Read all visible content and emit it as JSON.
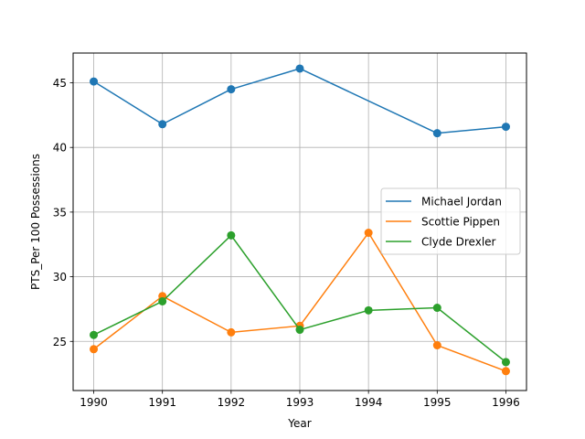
{
  "chart_data": {
    "type": "line",
    "title": "",
    "xlabel": "Year",
    "ylabel": "PTS_Per 100 Possessions",
    "x": [
      1990,
      1991,
      1992,
      1993,
      1994,
      1995,
      1996
    ],
    "xticks": [
      "1990",
      "1991",
      "1992",
      "1993",
      "1994",
      "1995",
      "1996"
    ],
    "yticks": [
      "25",
      "30",
      "35",
      "40",
      "45"
    ],
    "xlim": [
      1989.7,
      1996.3
    ],
    "ylim": [
      21.2,
      47.3
    ],
    "grid": true,
    "legend_position": "center-right",
    "series": [
      {
        "name": "Michael Jordan",
        "color": "#1f77b4",
        "x": [
          1990,
          1991,
          1992,
          1993,
          1995,
          1996
        ],
        "values": [
          45.1,
          41.8,
          44.5,
          46.1,
          41.1,
          41.6
        ]
      },
      {
        "name": "Scottie Pippen",
        "color": "#ff7f0e",
        "x": [
          1990,
          1991,
          1992,
          1993,
          1994,
          1995,
          1996
        ],
        "values": [
          24.4,
          28.5,
          25.7,
          26.2,
          33.4,
          24.7,
          22.7
        ]
      },
      {
        "name": "Clyde Drexler",
        "color": "#2ca02c",
        "x": [
          1990,
          1991,
          1992,
          1993,
          1994,
          1995,
          1996
        ],
        "values": [
          25.5,
          28.1,
          33.2,
          25.9,
          27.4,
          27.6,
          23.4
        ]
      }
    ]
  }
}
